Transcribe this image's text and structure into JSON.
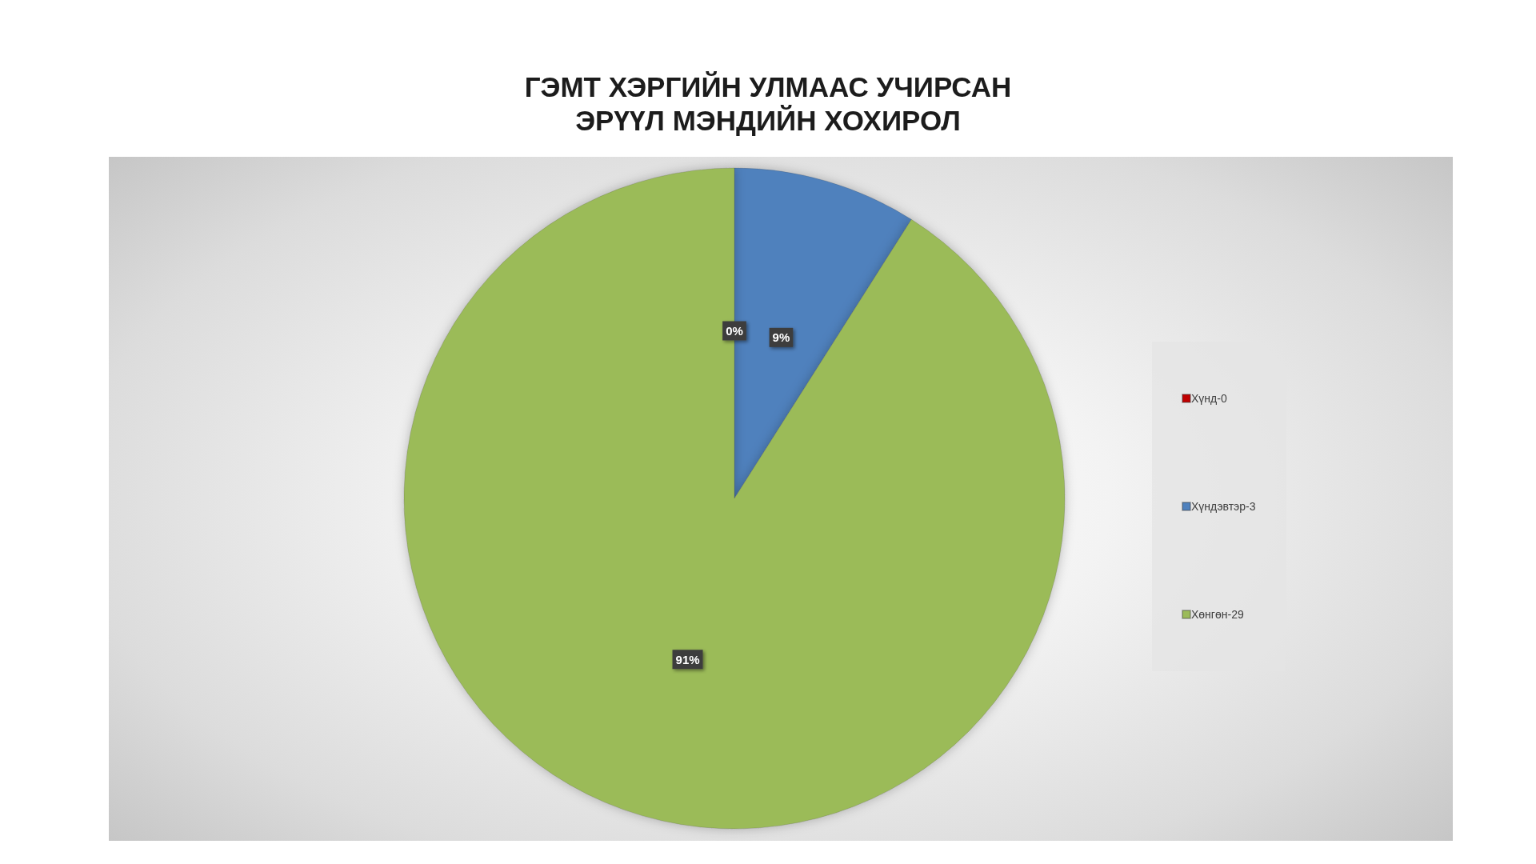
{
  "chart_data": {
    "type": "pie",
    "title": "ГЭМТ ХЭРГИЙН УЛМААС УЧИРСАН\nЭРҮҮЛ МЭНДИЙН ХОХИРОЛ",
    "categories": [
      "Хүнд-0",
      "Хүндэвтэр-3",
      "Хөнгөн-29"
    ],
    "values": [
      0,
      9,
      91
    ],
    "colors": [
      "#c00000",
      "#4f81bd",
      "#9bbb59"
    ],
    "value_labels": [
      "0%",
      "9%",
      "91%"
    ],
    "legend": "right"
  }
}
